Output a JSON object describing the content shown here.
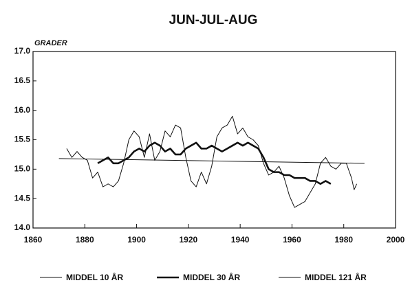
{
  "chart_data": {
    "type": "line",
    "title": "JUN-JUL-AUG",
    "y_label": "GRADER",
    "xlim": [
      1860,
      2000
    ],
    "xticks": [
      1860,
      1880,
      1900,
      1920,
      1940,
      1960,
      1980,
      2000
    ],
    "ylim": [
      14,
      17
    ],
    "yticks": [
      {
        "value": 14,
        "label": "14.0"
      },
      14.5,
      {
        "value": 15,
        "label": "15.0"
      },
      15.5,
      {
        "value": 16,
        "label": "16.0"
      },
      16.5,
      {
        "value": 17,
        "label": "17.0"
      }
    ],
    "series": [
      {
        "name": "MIDDEL 10 ÅR",
        "color": "#111111",
        "x": [
          1873,
          1875,
          1877,
          1879,
          1881,
          1883,
          1885,
          1887,
          1889,
          1891,
          1893,
          1895,
          1897,
          1899,
          1901,
          1903,
          1905,
          1907,
          1909,
          1911,
          1913,
          1915,
          1917,
          1919,
          1921,
          1923,
          1925,
          1927,
          1929,
          1931,
          1933,
          1935,
          1937,
          1939,
          1941,
          1943,
          1945,
          1947,
          1949,
          1951,
          1953,
          1955,
          1957,
          1959,
          1961,
          1963,
          1965,
          1967,
          1969,
          1971,
          1973,
          1975,
          1977,
          1979,
          1981,
          1983,
          1984,
          1985
        ],
        "values": [
          15.35,
          15.2,
          15.3,
          15.2,
          15.15,
          14.85,
          14.95,
          14.7,
          14.75,
          14.7,
          14.8,
          15.1,
          15.5,
          15.65,
          15.55,
          15.2,
          15.6,
          15.15,
          15.3,
          15.65,
          15.55,
          15.75,
          15.7,
          15.2,
          14.8,
          14.7,
          14.95,
          14.75,
          15.05,
          15.55,
          15.7,
          15.75,
          15.9,
          15.6,
          15.7,
          15.55,
          15.5,
          15.4,
          15.1,
          14.9,
          14.95,
          15.05,
          14.85,
          14.55,
          14.35,
          14.4,
          14.45,
          14.6,
          14.75,
          15.1,
          15.2,
          15.05,
          15.0,
          15.1,
          15.1,
          14.85,
          14.65,
          14.75
        ]
      },
      {
        "name": "MIDDEL 30 ÅR",
        "color": "#111111",
        "x": [
          1885,
          1887,
          1889,
          1891,
          1893,
          1895,
          1897,
          1899,
          1901,
          1903,
          1905,
          1907,
          1909,
          1911,
          1913,
          1915,
          1917,
          1919,
          1921,
          1923,
          1925,
          1927,
          1929,
          1931,
          1933,
          1935,
          1937,
          1939,
          1941,
          1943,
          1945,
          1947,
          1949,
          1951,
          1953,
          1955,
          1957,
          1959,
          1961,
          1963,
          1965,
          1967,
          1969,
          1971,
          1973,
          1975
        ],
        "values": [
          15.1,
          15.15,
          15.2,
          15.1,
          15.1,
          15.15,
          15.2,
          15.3,
          15.35,
          15.3,
          15.4,
          15.45,
          15.4,
          15.3,
          15.35,
          15.25,
          15.25,
          15.35,
          15.4,
          15.45,
          15.35,
          15.35,
          15.4,
          15.35,
          15.3,
          15.35,
          15.4,
          15.45,
          15.4,
          15.45,
          15.4,
          15.35,
          15.2,
          15.0,
          14.95,
          14.95,
          14.9,
          14.9,
          14.85,
          14.85,
          14.85,
          14.8,
          14.8,
          14.75,
          14.8,
          14.75
        ]
      },
      {
        "name": "MIDDEL 121 ÅR",
        "color": "#111111",
        "x": [
          1870,
          1988
        ],
        "values": [
          15.18,
          15.1
        ]
      }
    ]
  }
}
